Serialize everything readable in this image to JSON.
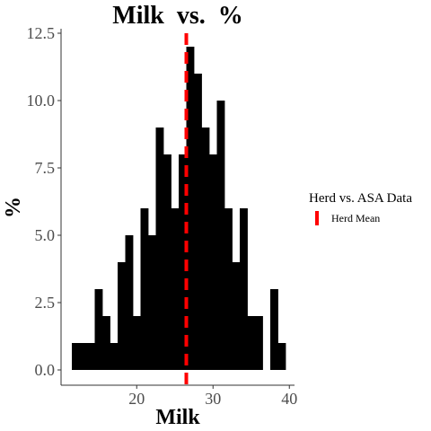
{
  "chart_data": {
    "type": "bar",
    "title": "Milk  vs.  %",
    "xlabel": "Milk",
    "ylabel": "%",
    "xlim": [
      11,
      41
    ],
    "ylim": [
      0,
      12.5
    ],
    "x_ticks": [
      20,
      30,
      40
    ],
    "x_tick_labels": [
      "20",
      "30",
      "40"
    ],
    "y_ticks": [
      0,
      2.5,
      5,
      7.5,
      10,
      12.5
    ],
    "y_tick_labels": [
      "0.0",
      "2.5",
      "5.0",
      "7.5",
      "10.0",
      "12.5"
    ],
    "bin_width": 1,
    "bins": [
      {
        "x": 12,
        "y": 1
      },
      {
        "x": 13,
        "y": 1
      },
      {
        "x": 14,
        "y": 1
      },
      {
        "x": 15,
        "y": 3
      },
      {
        "x": 16,
        "y": 2
      },
      {
        "x": 17,
        "y": 1
      },
      {
        "x": 18,
        "y": 4
      },
      {
        "x": 19,
        "y": 5
      },
      {
        "x": 20,
        "y": 2
      },
      {
        "x": 21,
        "y": 6
      },
      {
        "x": 22,
        "y": 5
      },
      {
        "x": 23,
        "y": 9
      },
      {
        "x": 24,
        "y": 8
      },
      {
        "x": 25,
        "y": 6
      },
      {
        "x": 26,
        "y": 8
      },
      {
        "x": 27,
        "y": 12
      },
      {
        "x": 28,
        "y": 11
      },
      {
        "x": 29,
        "y": 9
      },
      {
        "x": 30,
        "y": 8
      },
      {
        "x": 31,
        "y": 10
      },
      {
        "x": 32,
        "y": 6
      },
      {
        "x": 33,
        "y": 4
      },
      {
        "x": 34,
        "y": 6
      },
      {
        "x": 35,
        "y": 2
      },
      {
        "x": 36,
        "y": 2
      },
      {
        "x": 37,
        "y": 0
      },
      {
        "x": 38,
        "y": 3
      },
      {
        "x": 39,
        "y": 1
      }
    ],
    "bar_color": "#000000",
    "mean_line": {
      "x": 26.5,
      "label": "Herd Mean",
      "color": "#ff0000"
    },
    "legend": {
      "title": "Herd vs. ASA Data",
      "position": "right"
    },
    "grid": false
  }
}
